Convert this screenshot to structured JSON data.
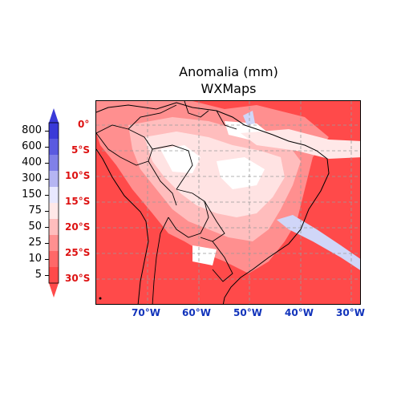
{
  "title": "Anomalia (mm)",
  "subtitle": "WXMaps",
  "latitude_labels": [
    "0°",
    "5°S",
    "10°S",
    "15°S",
    "20°S",
    "25°S",
    "30°S"
  ],
  "longitude_labels": [
    "70°W",
    "60°W",
    "50°W",
    "40°W",
    "30°W"
  ],
  "colorbar": {
    "levels": [
      "800",
      "600",
      "400",
      "300",
      "150",
      "75",
      "50",
      "25",
      "10",
      "5"
    ],
    "colors": [
      "#3a3ad8",
      "#5a5ae0",
      "#8080e8",
      "#b5b5f2",
      "#e8e8ff",
      "#ffe8e8",
      "#ffbdbd",
      "#ff9090",
      "#ff6868",
      "#ff4a4a"
    ],
    "extend": "both"
  },
  "colors": {
    "land_red": "#ff4a4a",
    "lat_label": "#dd1111",
    "lon_label": "#1133bb",
    "positive_anomaly": "#d0d6f8"
  }
}
